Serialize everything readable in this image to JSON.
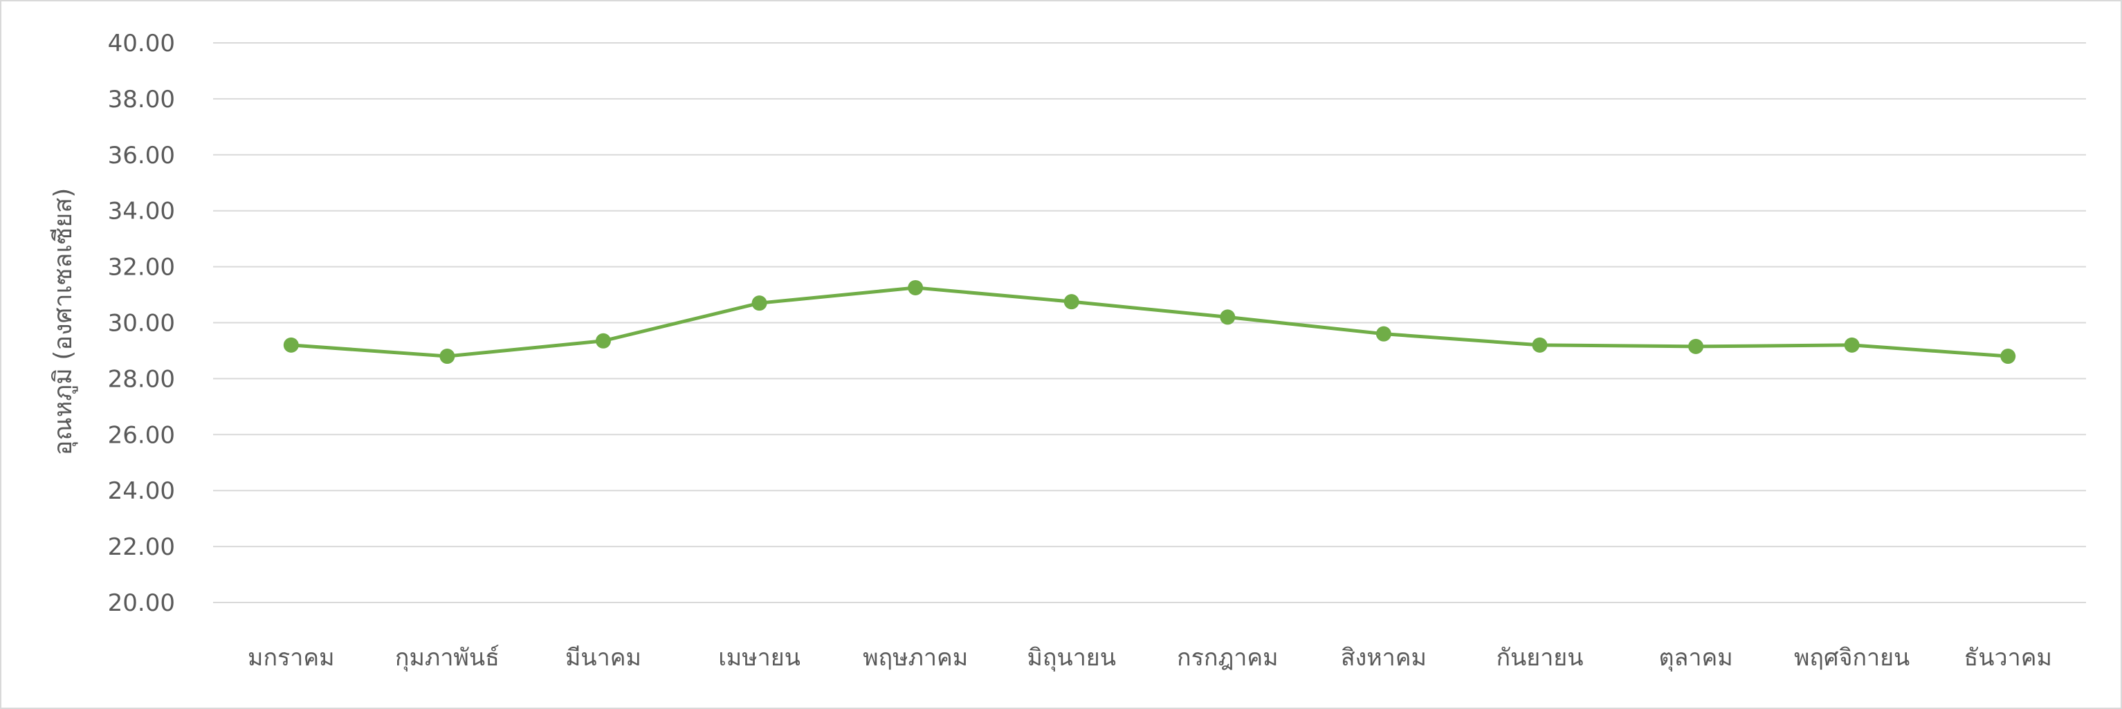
{
  "chart_data": {
    "type": "line",
    "title": "",
    "xlabel": "",
    "ylabel": "อุณหภูมิ (องศาเซลเซียส)",
    "ylim": [
      20,
      40
    ],
    "y_ticks": [
      "40.00",
      "38.00",
      "36.00",
      "34.00",
      "32.00",
      "30.00",
      "28.00",
      "26.00",
      "24.00",
      "22.00",
      "20.00"
    ],
    "categories": [
      "มกราคม",
      "กุมภาพันธ์",
      "มีนาคม",
      "เมษายน",
      "พฤษภาคม",
      "มิถุนายน",
      "กรกฎาคม",
      "สิงหาคม",
      "กันยายน",
      "ตุลาคม",
      "พฤศจิกายน",
      "ธันวาคม"
    ],
    "series": [
      {
        "values": [
          29.2,
          28.8,
          29.35,
          30.7,
          31.25,
          30.75,
          30.2,
          29.6,
          29.2,
          29.15,
          29.2,
          28.8
        ],
        "color": "#70ad47"
      }
    ],
    "grid": true,
    "legend": "none"
  }
}
